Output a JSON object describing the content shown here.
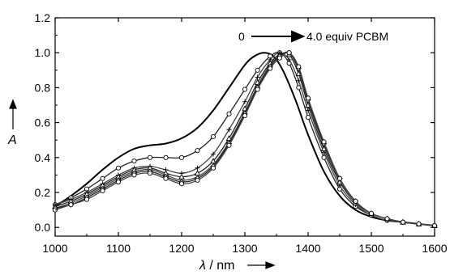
{
  "chart_data": {
    "type": "line",
    "xlabel_symbol": "λ",
    "xlabel_unit": " / nm",
    "ylabel": "A",
    "xlim": [
      1000,
      1600
    ],
    "ylim": [
      -0.05,
      1.2
    ],
    "xticks": [
      "1000",
      "1100",
      "1200",
      "1300",
      "1400",
      "1500",
      "1600"
    ],
    "yticks": [
      "0.0",
      "0.2",
      "0.4",
      "0.6",
      "0.8",
      "1.0",
      "1.2"
    ],
    "annotation": {
      "start": "0",
      "end": "4.0 equiv PCBM"
    },
    "series": [
      {
        "marker": "none",
        "x": [
          1000,
          1025,
          1050,
          1075,
          1100,
          1125,
          1150,
          1175,
          1200,
          1225,
          1250,
          1275,
          1300,
          1315,
          1330,
          1345,
          1360,
          1380,
          1400,
          1425,
          1450,
          1475,
          1500,
          1525,
          1550,
          1575,
          1600
        ],
        "y": [
          0.12,
          0.18,
          0.25,
          0.33,
          0.4,
          0.45,
          0.47,
          0.48,
          0.51,
          0.57,
          0.67,
          0.8,
          0.93,
          0.98,
          1.0,
          0.98,
          0.9,
          0.73,
          0.53,
          0.32,
          0.18,
          0.1,
          0.06,
          0.04,
          0.03,
          0.02,
          0.01
        ]
      },
      {
        "marker": "circle",
        "x": [
          1000,
          1025,
          1050,
          1075,
          1100,
          1125,
          1150,
          1175,
          1200,
          1225,
          1250,
          1275,
          1300,
          1320,
          1340,
          1355,
          1370,
          1385,
          1400,
          1425,
          1450,
          1475,
          1500,
          1525,
          1550,
          1575,
          1600
        ],
        "y": [
          0.13,
          0.17,
          0.22,
          0.28,
          0.34,
          0.38,
          0.4,
          0.4,
          0.4,
          0.44,
          0.52,
          0.65,
          0.79,
          0.9,
          0.98,
          1.0,
          0.94,
          0.8,
          0.63,
          0.4,
          0.22,
          0.12,
          0.07,
          0.04,
          0.03,
          0.02,
          0.01
        ]
      },
      {
        "marker": "plus",
        "x": [
          1000,
          1025,
          1050,
          1075,
          1100,
          1125,
          1150,
          1175,
          1200,
          1225,
          1250,
          1275,
          1300,
          1320,
          1340,
          1355,
          1370,
          1385,
          1400,
          1425,
          1450,
          1475,
          1500,
          1525,
          1550,
          1575,
          1600
        ],
        "y": [
          0.13,
          0.16,
          0.2,
          0.25,
          0.3,
          0.34,
          0.35,
          0.33,
          0.31,
          0.34,
          0.42,
          0.56,
          0.72,
          0.86,
          0.96,
          1.0,
          0.96,
          0.84,
          0.67,
          0.43,
          0.24,
          0.13,
          0.07,
          0.04,
          0.03,
          0.02,
          0.01
        ]
      },
      {
        "marker": "triangle",
        "x": [
          1000,
          1025,
          1050,
          1075,
          1100,
          1125,
          1150,
          1175,
          1200,
          1225,
          1250,
          1275,
          1300,
          1320,
          1340,
          1355,
          1370,
          1385,
          1400,
          1425,
          1450,
          1475,
          1500,
          1525,
          1550,
          1575,
          1600
        ],
        "y": [
          0.12,
          0.15,
          0.19,
          0.24,
          0.29,
          0.33,
          0.34,
          0.31,
          0.29,
          0.31,
          0.38,
          0.51,
          0.68,
          0.83,
          0.94,
          0.99,
          0.99,
          0.88,
          0.7,
          0.45,
          0.26,
          0.14,
          0.08,
          0.05,
          0.03,
          0.02,
          0.01
        ]
      },
      {
        "marker": "none",
        "x": [
          1000,
          1025,
          1050,
          1075,
          1100,
          1125,
          1150,
          1175,
          1200,
          1225,
          1250,
          1275,
          1300,
          1320,
          1340,
          1355,
          1370,
          1385,
          1400,
          1425,
          1450,
          1475,
          1500,
          1525,
          1550,
          1575,
          1600
        ],
        "y": [
          0.11,
          0.14,
          0.18,
          0.23,
          0.28,
          0.32,
          0.33,
          0.3,
          0.27,
          0.29,
          0.36,
          0.49,
          0.66,
          0.81,
          0.93,
          0.98,
          1.0,
          0.9,
          0.72,
          0.47,
          0.27,
          0.14,
          0.08,
          0.05,
          0.03,
          0.02,
          0.01
        ]
      },
      {
        "marker": "diamond",
        "x": [
          1000,
          1025,
          1050,
          1075,
          1100,
          1125,
          1150,
          1175,
          1200,
          1225,
          1250,
          1275,
          1300,
          1320,
          1340,
          1355,
          1370,
          1385,
          1400,
          1425,
          1450,
          1475,
          1500,
          1525,
          1550,
          1575,
          1600
        ],
        "y": [
          0.11,
          0.13,
          0.17,
          0.22,
          0.27,
          0.31,
          0.32,
          0.29,
          0.26,
          0.28,
          0.35,
          0.48,
          0.65,
          0.8,
          0.92,
          0.98,
          1.0,
          0.91,
          0.73,
          0.48,
          0.28,
          0.15,
          0.08,
          0.05,
          0.03,
          0.02,
          0.01
        ]
      },
      {
        "marker": "circle",
        "x": [
          1000,
          1025,
          1050,
          1075,
          1100,
          1125,
          1150,
          1175,
          1200,
          1225,
          1250,
          1275,
          1300,
          1320,
          1340,
          1355,
          1370,
          1385,
          1400,
          1425,
          1450,
          1475,
          1500,
          1525,
          1550,
          1575,
          1600
        ],
        "y": [
          0.1,
          0.13,
          0.16,
          0.21,
          0.26,
          0.3,
          0.31,
          0.28,
          0.25,
          0.27,
          0.34,
          0.47,
          0.64,
          0.79,
          0.91,
          0.97,
          1.0,
          0.92,
          0.74,
          0.49,
          0.28,
          0.15,
          0.08,
          0.05,
          0.03,
          0.02,
          0.01
        ]
      }
    ]
  }
}
